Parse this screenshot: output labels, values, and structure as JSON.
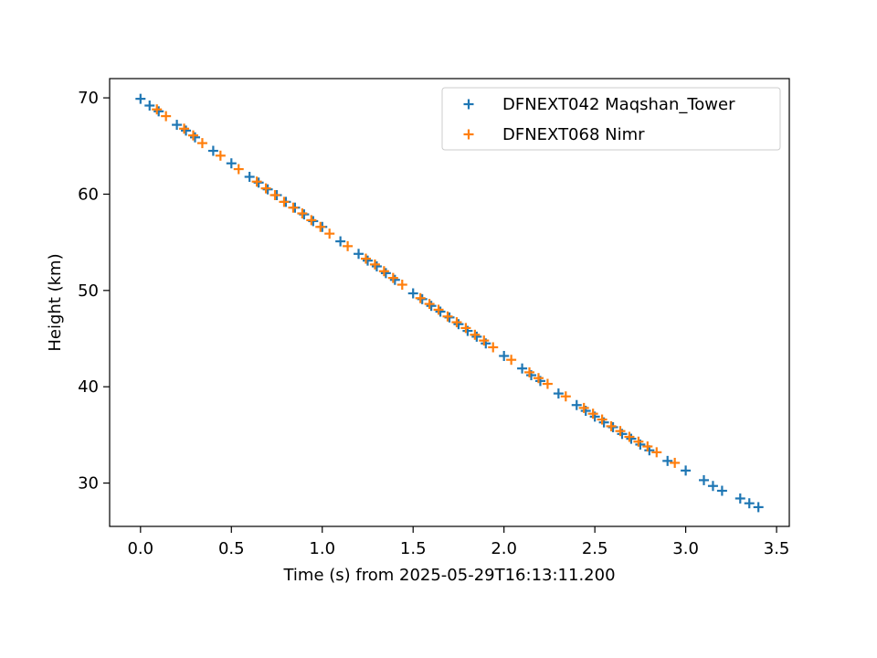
{
  "chart_data": {
    "type": "scatter",
    "title": "",
    "xlabel": "Time (s) from 2025-05-29T16:13:11.200",
    "ylabel": "Height (km)",
    "xlim": [
      -0.17,
      3.57
    ],
    "ylim": [
      25.5,
      72.0
    ],
    "xticks": [
      "0.0",
      "0.5",
      "1.0",
      "1.5",
      "2.0",
      "2.5",
      "3.0",
      "3.5"
    ],
    "yticks": [
      "30",
      "40",
      "50",
      "60",
      "70"
    ],
    "grid": false,
    "legend_position": "top-right",
    "marker": "plus",
    "series": [
      {
        "name": "DFNEXT042 Maqshan_Tower",
        "color": "#1f77b4",
        "x": [
          0.0,
          0.05,
          0.1,
          0.2,
          0.25,
          0.3,
          0.4,
          0.5,
          0.6,
          0.65,
          0.7,
          0.75,
          0.8,
          0.85,
          0.9,
          0.95,
          1.0,
          1.1,
          1.2,
          1.25,
          1.3,
          1.35,
          1.4,
          1.5,
          1.55,
          1.6,
          1.65,
          1.7,
          1.75,
          1.8,
          1.85,
          1.9,
          2.0,
          2.1,
          2.15,
          2.2,
          2.3,
          2.4,
          2.45,
          2.5,
          2.55,
          2.6,
          2.65,
          2.7,
          2.75,
          2.8,
          2.9,
          3.0,
          3.1,
          3.15,
          3.2,
          3.3,
          3.35,
          3.4
        ],
        "y": [
          69.9,
          69.2,
          68.6,
          67.2,
          66.6,
          65.9,
          64.5,
          63.2,
          61.8,
          61.2,
          60.5,
          59.9,
          59.2,
          58.6,
          57.9,
          57.2,
          56.6,
          55.1,
          53.8,
          53.1,
          52.5,
          51.8,
          51.1,
          49.7,
          49.1,
          48.4,
          47.8,
          47.2,
          46.5,
          45.8,
          45.2,
          44.5,
          43.2,
          41.9,
          41.2,
          40.6,
          39.3,
          38.1,
          37.5,
          36.9,
          36.3,
          35.8,
          35.1,
          34.6,
          34.0,
          33.4,
          32.3,
          31.3,
          30.3,
          29.7,
          29.2,
          28.4,
          27.9,
          27.5
        ]
      },
      {
        "name": "DFNEXT068 Nimr",
        "color": "#ff7f0e",
        "x": [
          0.09,
          0.14,
          0.24,
          0.29,
          0.34,
          0.44,
          0.54,
          0.64,
          0.69,
          0.74,
          0.79,
          0.84,
          0.89,
          0.94,
          0.99,
          1.04,
          1.14,
          1.24,
          1.29,
          1.34,
          1.39,
          1.44,
          1.54,
          1.59,
          1.64,
          1.69,
          1.74,
          1.79,
          1.84,
          1.89,
          1.94,
          2.04,
          2.14,
          2.19,
          2.24,
          2.34,
          2.44,
          2.49,
          2.54,
          2.59,
          2.64,
          2.69,
          2.74,
          2.79,
          2.84,
          2.94
        ],
        "y": [
          68.8,
          68.1,
          66.8,
          66.1,
          65.3,
          64.0,
          62.6,
          61.3,
          60.6,
          59.9,
          59.2,
          58.6,
          58.0,
          57.3,
          56.6,
          55.9,
          54.6,
          53.3,
          52.7,
          52.0,
          51.3,
          50.6,
          49.2,
          48.6,
          48.0,
          47.3,
          46.7,
          46.1,
          45.4,
          44.8,
          44.1,
          42.8,
          41.5,
          40.9,
          40.3,
          39.0,
          37.8,
          37.2,
          36.6,
          35.9,
          35.4,
          34.8,
          34.3,
          33.8,
          33.2,
          32.1
        ]
      }
    ]
  }
}
